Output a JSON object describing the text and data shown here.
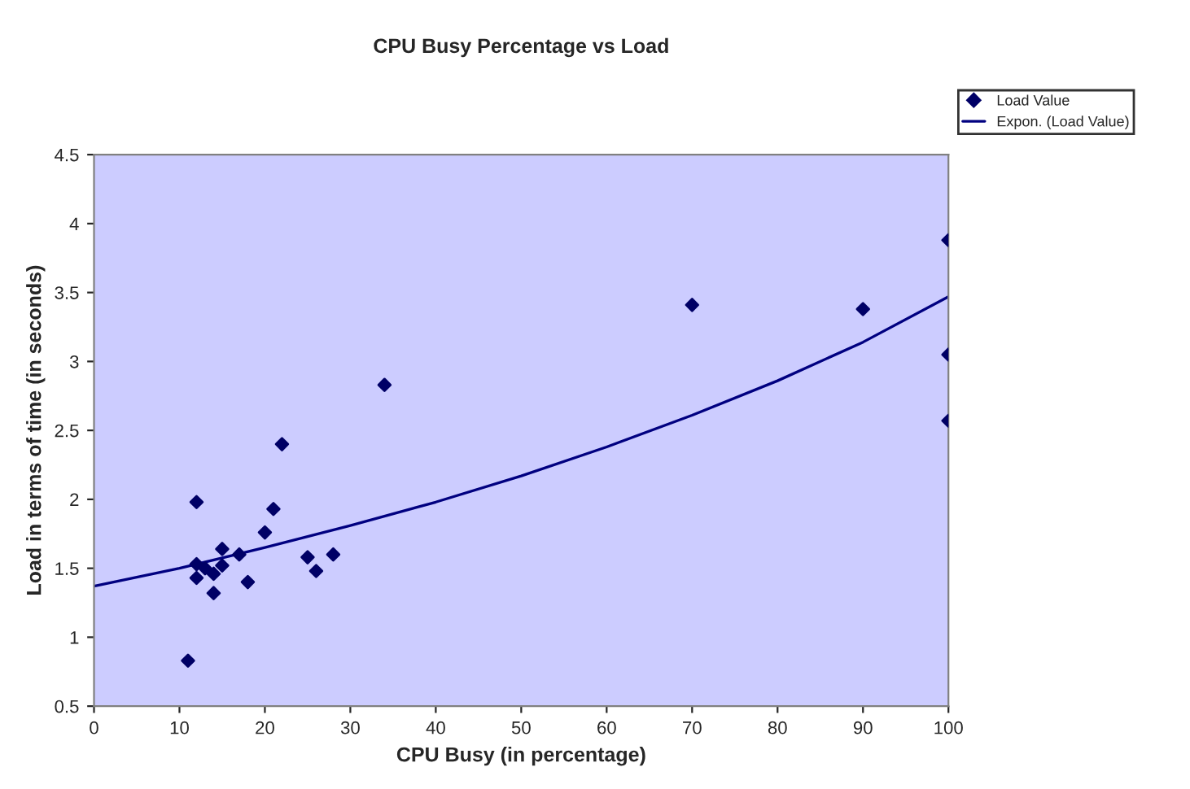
{
  "chart_data": {
    "type": "scatter",
    "title": "CPU Busy Percentage vs Load",
    "xlabel": "CPU Busy (in percentage)",
    "ylabel": "Load in terms of time (in seconds)",
    "series": [
      {
        "name": "Load Value",
        "color": "#000066",
        "marker": "diamond",
        "x": [
          11,
          12,
          12,
          12,
          13,
          14,
          14,
          15,
          15,
          17,
          18,
          20,
          21,
          22,
          25,
          26,
          28,
          34,
          70,
          90,
          100,
          100,
          100
        ],
        "values": [
          0.83,
          1.98,
          1.53,
          1.43,
          1.5,
          1.46,
          1.32,
          1.52,
          1.64,
          1.6,
          1.4,
          1.76,
          1.93,
          2.4,
          1.58,
          1.48,
          1.6,
          2.83,
          3.41,
          3.38,
          3.88,
          3.05,
          2.57
        ]
      },
      {
        "name": "Expon. (Load Value)",
        "type": "line",
        "color": "#000080",
        "marker": "none",
        "line_style": "solid",
        "x": [
          0,
          10,
          20,
          30,
          40,
          50,
          60,
          70,
          80,
          90,
          100
        ],
        "values": [
          1.37,
          1.5,
          1.65,
          1.81,
          1.98,
          2.17,
          2.38,
          2.61,
          2.86,
          3.14,
          3.47
        ]
      }
    ],
    "xlim": [
      0,
      100
    ],
    "xticks": [
      0,
      10,
      20,
      30,
      40,
      50,
      60,
      70,
      80,
      90,
      100
    ],
    "ylim": [
      0.5,
      4.5
    ],
    "yticks": [
      0.5,
      1,
      1.5,
      2,
      2.5,
      3,
      3.5,
      4,
      4.5
    ],
    "grid": false,
    "legend": "top right"
  }
}
